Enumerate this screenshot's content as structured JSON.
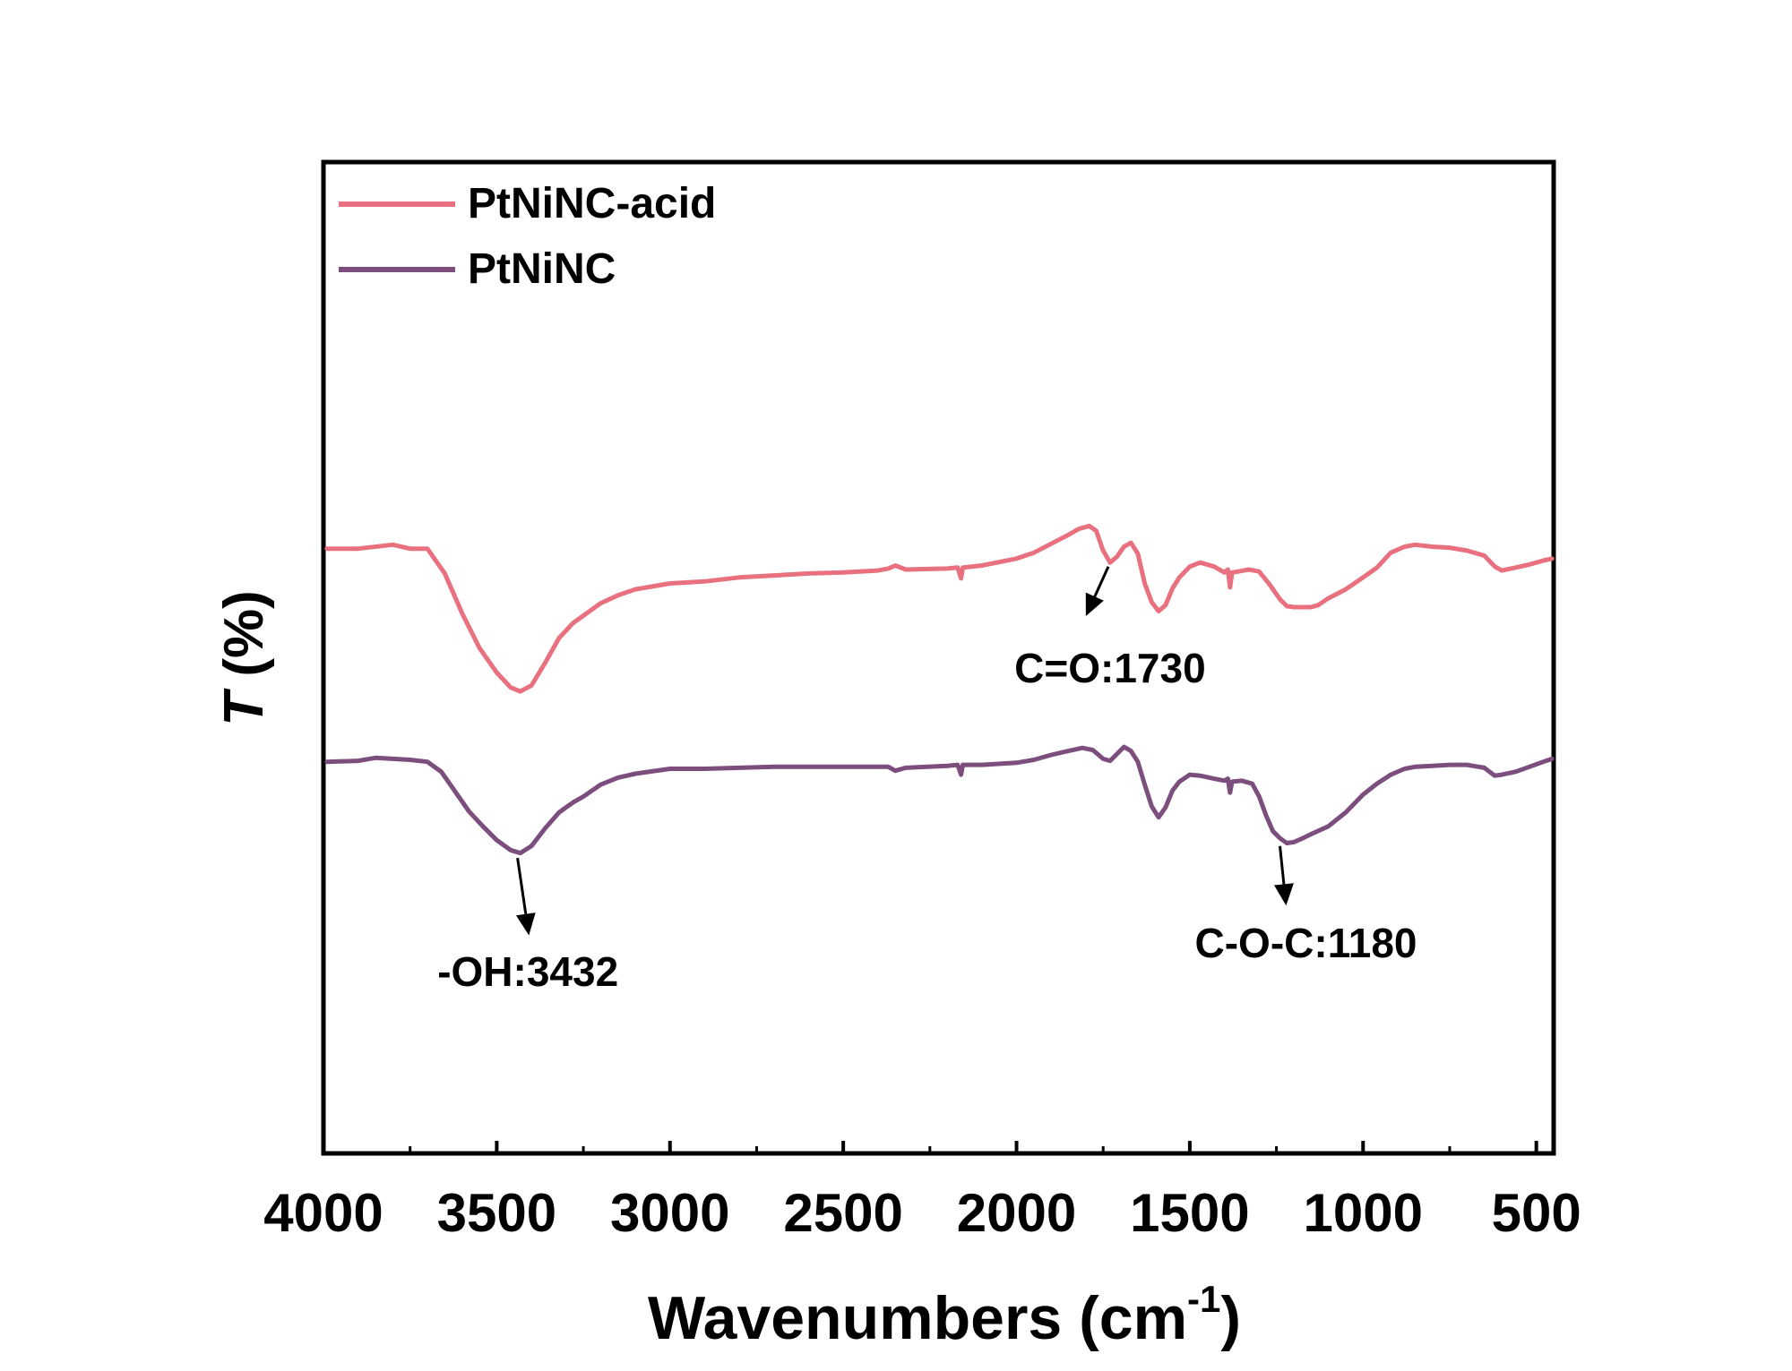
{
  "chart_data": {
    "type": "line",
    "title": "",
    "xlabel": "Wavenumbers (cm",
    "xlabel_sup": "-1",
    "xlabel_close": ")",
    "ylabel": "T",
    "ylabel_unit": " (%)",
    "xlim": [
      4000,
      450
    ],
    "ylim": [
      0,
      100
    ],
    "x_ticks": [
      4000,
      3500,
      3000,
      2500,
      2000,
      1500,
      1000,
      500
    ],
    "x_tick_labels": [
      "4000",
      "3500",
      "3000",
      "2500",
      "2000",
      "1500",
      "1000",
      "500"
    ],
    "y_ticks_shown": false,
    "grid": false,
    "legend_position": "top-left",
    "series": [
      {
        "name": "PtNiNC-acid",
        "color": "#e8707f",
        "points": [
          [
            3990,
            61.0
          ],
          [
            3900,
            61.0
          ],
          [
            3800,
            61.4
          ],
          [
            3750,
            61.0
          ],
          [
            3700,
            61.0
          ],
          [
            3650,
            58.5
          ],
          [
            3600,
            54.5
          ],
          [
            3550,
            51.0
          ],
          [
            3500,
            48.5
          ],
          [
            3460,
            47.0
          ],
          [
            3432,
            46.6
          ],
          [
            3400,
            47.2
          ],
          [
            3360,
            49.5
          ],
          [
            3320,
            52.0
          ],
          [
            3280,
            53.5
          ],
          [
            3200,
            55.5
          ],
          [
            3150,
            56.3
          ],
          [
            3100,
            56.9
          ],
          [
            3000,
            57.5
          ],
          [
            2900,
            57.7
          ],
          [
            2800,
            58.1
          ],
          [
            2700,
            58.3
          ],
          [
            2600,
            58.5
          ],
          [
            2500,
            58.6
          ],
          [
            2400,
            58.8
          ],
          [
            2370,
            59.0
          ],
          [
            2350,
            59.3
          ],
          [
            2320,
            58.9
          ],
          [
            2200,
            59.0
          ],
          [
            2170,
            59.1
          ],
          [
            2160,
            58.0
          ],
          [
            2155,
            59.1
          ],
          [
            2100,
            59.3
          ],
          [
            2000,
            60.0
          ],
          [
            1950,
            60.6
          ],
          [
            1900,
            61.5
          ],
          [
            1850,
            62.4
          ],
          [
            1820,
            63.0
          ],
          [
            1790,
            63.3
          ],
          [
            1770,
            62.8
          ],
          [
            1750,
            60.8
          ],
          [
            1730,
            59.6
          ],
          [
            1710,
            60.2
          ],
          [
            1690,
            61.2
          ],
          [
            1670,
            61.6
          ],
          [
            1650,
            60.5
          ],
          [
            1630,
            57.5
          ],
          [
            1610,
            55.6
          ],
          [
            1590,
            54.7
          ],
          [
            1570,
            55.3
          ],
          [
            1550,
            57.0
          ],
          [
            1530,
            58.1
          ],
          [
            1500,
            59.2
          ],
          [
            1470,
            59.6
          ],
          [
            1430,
            59.2
          ],
          [
            1400,
            58.6
          ],
          [
            1390,
            58.9
          ],
          [
            1384,
            57.1
          ],
          [
            1378,
            58.6
          ],
          [
            1360,
            58.7
          ],
          [
            1330,
            58.9
          ],
          [
            1300,
            58.7
          ],
          [
            1270,
            57.4
          ],
          [
            1240,
            55.9
          ],
          [
            1220,
            55.2
          ],
          [
            1200,
            55.1
          ],
          [
            1150,
            55.1
          ],
          [
            1130,
            55.3
          ],
          [
            1100,
            56.0
          ],
          [
            1050,
            56.9
          ],
          [
            1000,
            58.1
          ],
          [
            960,
            59.1
          ],
          [
            920,
            60.6
          ],
          [
            880,
            61.2
          ],
          [
            850,
            61.4
          ],
          [
            800,
            61.2
          ],
          [
            750,
            61.1
          ],
          [
            700,
            60.8
          ],
          [
            650,
            60.3
          ],
          [
            620,
            59.2
          ],
          [
            600,
            58.8
          ],
          [
            560,
            59.1
          ],
          [
            520,
            59.4
          ],
          [
            480,
            59.8
          ],
          [
            455,
            60.0
          ]
        ]
      },
      {
        "name": "PtNiNC",
        "color": "#7b4e7d",
        "points": [
          [
            3990,
            39.5
          ],
          [
            3900,
            39.6
          ],
          [
            3850,
            39.9
          ],
          [
            3800,
            39.8
          ],
          [
            3750,
            39.7
          ],
          [
            3700,
            39.5
          ],
          [
            3660,
            38.5
          ],
          [
            3620,
            36.5
          ],
          [
            3580,
            34.5
          ],
          [
            3540,
            33.0
          ],
          [
            3500,
            31.6
          ],
          [
            3460,
            30.6
          ],
          [
            3432,
            30.3
          ],
          [
            3400,
            31.0
          ],
          [
            3360,
            32.8
          ],
          [
            3320,
            34.4
          ],
          [
            3280,
            35.4
          ],
          [
            3250,
            36.0
          ],
          [
            3200,
            37.2
          ],
          [
            3150,
            37.9
          ],
          [
            3100,
            38.3
          ],
          [
            3000,
            38.8
          ],
          [
            2900,
            38.8
          ],
          [
            2800,
            38.9
          ],
          [
            2700,
            39.0
          ],
          [
            2600,
            39.0
          ],
          [
            2500,
            39.0
          ],
          [
            2370,
            39.0
          ],
          [
            2350,
            38.6
          ],
          [
            2320,
            38.9
          ],
          [
            2200,
            39.1
          ],
          [
            2170,
            39.2
          ],
          [
            2160,
            38.2
          ],
          [
            2155,
            39.2
          ],
          [
            2100,
            39.2
          ],
          [
            2000,
            39.4
          ],
          [
            1950,
            39.7
          ],
          [
            1900,
            40.2
          ],
          [
            1850,
            40.6
          ],
          [
            1810,
            40.9
          ],
          [
            1780,
            40.7
          ],
          [
            1750,
            39.8
          ],
          [
            1730,
            39.6
          ],
          [
            1710,
            40.3
          ],
          [
            1690,
            41.0
          ],
          [
            1670,
            40.6
          ],
          [
            1650,
            39.5
          ],
          [
            1630,
            37.2
          ],
          [
            1610,
            35.0
          ],
          [
            1590,
            33.9
          ],
          [
            1570,
            34.9
          ],
          [
            1550,
            36.6
          ],
          [
            1530,
            37.5
          ],
          [
            1500,
            38.2
          ],
          [
            1470,
            38.1
          ],
          [
            1430,
            37.8
          ],
          [
            1400,
            37.6
          ],
          [
            1390,
            37.8
          ],
          [
            1384,
            36.4
          ],
          [
            1378,
            37.5
          ],
          [
            1350,
            37.6
          ],
          [
            1320,
            37.3
          ],
          [
            1300,
            36.0
          ],
          [
            1280,
            34.1
          ],
          [
            1260,
            32.5
          ],
          [
            1240,
            31.8
          ],
          [
            1220,
            31.3
          ],
          [
            1200,
            31.4
          ],
          [
            1180,
            31.7
          ],
          [
            1150,
            32.2
          ],
          [
            1100,
            33.0
          ],
          [
            1050,
            34.4
          ],
          [
            1000,
            36.2
          ],
          [
            960,
            37.3
          ],
          [
            920,
            38.2
          ],
          [
            880,
            38.8
          ],
          [
            850,
            39.0
          ],
          [
            800,
            39.1
          ],
          [
            750,
            39.2
          ],
          [
            700,
            39.2
          ],
          [
            650,
            38.9
          ],
          [
            620,
            38.1
          ],
          [
            600,
            38.2
          ],
          [
            560,
            38.5
          ],
          [
            520,
            39.0
          ],
          [
            480,
            39.5
          ],
          [
            455,
            39.8
          ]
        ]
      }
    ],
    "annotations": [
      {
        "text": "C=O:1730",
        "color": "#000000",
        "arrow_from": [
          1735,
          59.2
        ],
        "arrow_to": [
          1800,
          54.2
        ],
        "label_at": [
          1730,
          47.5
        ]
      },
      {
        "text": "-OH:3432",
        "color": "#000000",
        "arrow_from": [
          3440,
          29.8
        ],
        "arrow_to": [
          3407,
          22.0
        ],
        "label_at": [
          3410,
          16.9
        ]
      },
      {
        "text": "C-O-C:1180",
        "color": "#000000",
        "arrow_from": [
          1240,
          31.0
        ],
        "arrow_to": [
          1222,
          25.0
        ],
        "label_at": [
          1165,
          19.8
        ]
      }
    ]
  }
}
